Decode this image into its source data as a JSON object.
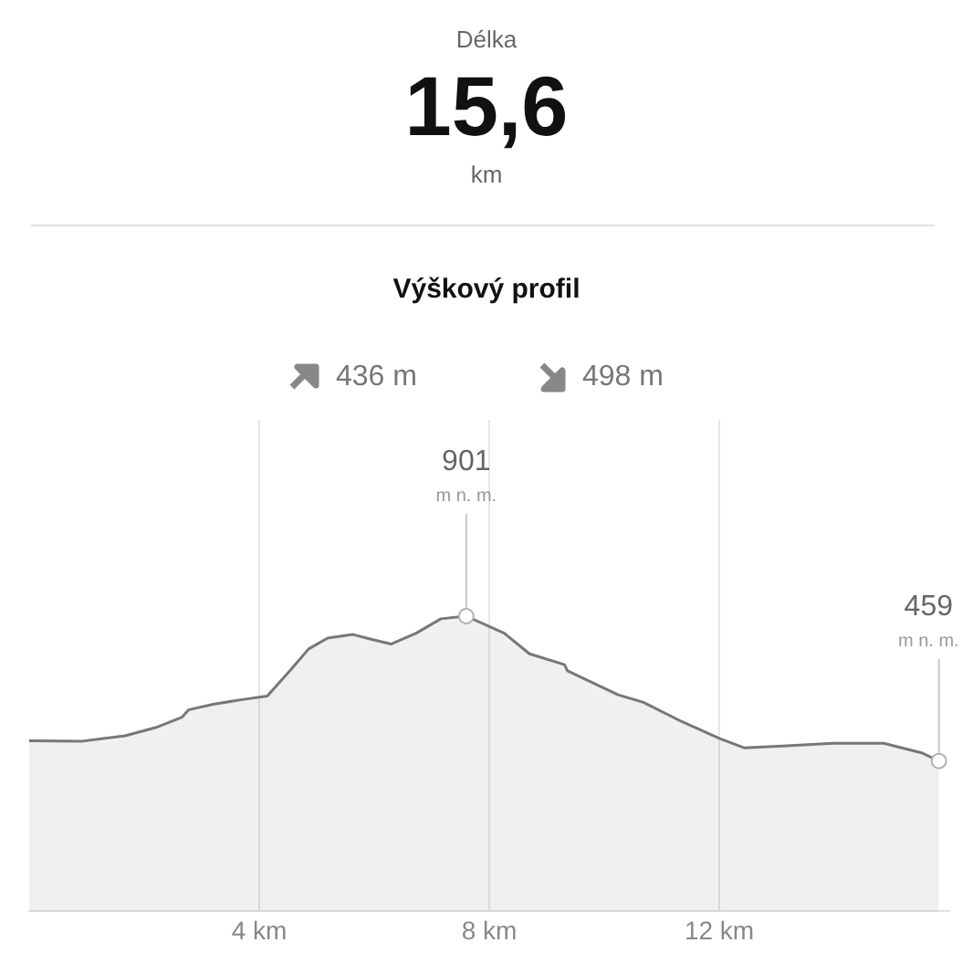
{
  "chart_data": {
    "type": "area",
    "title": "Výškový profil",
    "annotations": [
      "Délka",
      "15,6",
      "km",
      "436 m",
      "498 m",
      {
        "text": "m n. m.",
        "x": 7.6,
        "y": 901
      },
      {
        "text": "m n. m.",
        "x": 15.82,
        "y": 459
      }
    ],
    "x": [
      0,
      0.9,
      1.67,
      2.2,
      2.66,
      2.77,
      3.2,
      3.65,
      4.14,
      4.53,
      4.86,
      5.19,
      5.63,
      5.96,
      6.29,
      6.73,
      7.16,
      7.6,
      8.26,
      8.7,
      9.31,
      9.36,
      10.24,
      10.68,
      11.34,
      12.0,
      12.44,
      13.1,
      13.98,
      14.86,
      15.52,
      15.82
    ],
    "series": [
      {
        "color": "#777777",
        "values": [
          521,
          519,
          536,
          561,
          593,
          615,
          632,
          645,
          657,
          734,
          801,
          834,
          845,
          830,
          816,
          849,
          893,
          901,
          849,
          786,
          753,
          734,
          661,
          638,
          580,
          528,
          499,
          505,
          513,
          513,
          484,
          459
        ],
        "value_labels": [
          null,
          null,
          null,
          null,
          null,
          null,
          null,
          null,
          null,
          null,
          null,
          null,
          null,
          null,
          null,
          null,
          null,
          "901",
          null,
          null,
          null,
          null,
          null,
          null,
          null,
          null,
          null,
          null,
          null,
          null,
          null,
          "459"
        ]
      }
    ],
    "xlim": [
      0,
      16
    ],
    "xticks": [
      {
        "value": 4,
        "label": "4 km"
      },
      {
        "value": 8,
        "label": "8 km"
      },
      {
        "value": 12,
        "label": "12 km"
      }
    ],
    "ylim": [
      0,
      1500
    ],
    "tick_labels": "x",
    "grid": "x",
    "legend": false
  }
}
